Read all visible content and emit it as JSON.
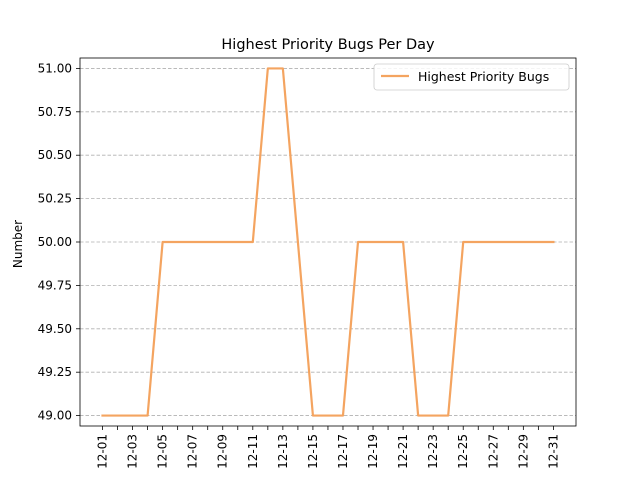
{
  "chart_data": {
    "type": "line",
    "title": "Highest Priority Bugs Per Day",
    "xlabel": "",
    "ylabel": "Number",
    "ylim": [
      48.94,
      51.06
    ],
    "yticks": [
      49.0,
      49.25,
      49.5,
      49.75,
      50.0,
      50.25,
      50.5,
      50.75,
      51.0
    ],
    "ytick_labels": [
      "49.00",
      "49.25",
      "49.50",
      "49.75",
      "50.00",
      "50.25",
      "50.50",
      "50.75",
      "51.00"
    ],
    "grid": "y-dashed",
    "legend_position": "top-right",
    "line_color": "#f4a460",
    "x": [
      "12-01",
      "12-02",
      "12-03",
      "12-04",
      "12-05",
      "12-06",
      "12-07",
      "12-08",
      "12-09",
      "12-10",
      "12-11",
      "12-12",
      "12-13",
      "12-14",
      "12-15",
      "12-16",
      "12-17",
      "12-18",
      "12-19",
      "12-20",
      "12-21",
      "12-22",
      "12-23",
      "12-24",
      "12-25",
      "12-26",
      "12-27",
      "12-28",
      "12-29",
      "12-30",
      "12-31"
    ],
    "xtick_labels": [
      "12-01",
      "12-03",
      "12-05",
      "12-07",
      "12-09",
      "12-11",
      "12-13",
      "12-15",
      "12-17",
      "12-19",
      "12-21",
      "12-23",
      "12-25",
      "12-27",
      "12-29",
      "12-31"
    ],
    "series": [
      {
        "name": "Highest Priority Bugs",
        "values": [
          49,
          49,
          49,
          49,
          50,
          50,
          50,
          50,
          50,
          50,
          50,
          51,
          51,
          50,
          49,
          49,
          49,
          50,
          50,
          50,
          50,
          49,
          49,
          49,
          50,
          50,
          50,
          50,
          50,
          50,
          50
        ]
      }
    ]
  }
}
